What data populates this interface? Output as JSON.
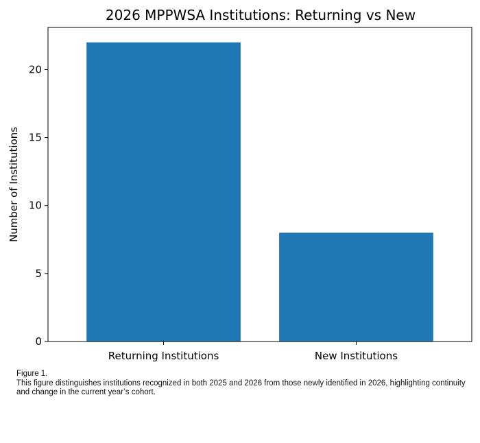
{
  "chart_data": {
    "type": "bar",
    "title": "2026 MPPWSA Institutions: Returning vs New",
    "xlabel": "",
    "ylabel": "Number of Institutions",
    "categories": [
      "Returning Institutions",
      "New Institutions"
    ],
    "values": [
      22,
      8
    ],
    "ylim": [
      0,
      23.1
    ],
    "yticks": [
      0,
      5,
      10,
      15,
      20
    ],
    "bar_color": "#1f77b4",
    "grid": false,
    "legend": "none"
  },
  "caption": {
    "label": "Figure 1.",
    "text": "This figure distinguishes institutions recognized in both 2025 and 2026 from those newly identified in 2026, highlighting continuity and change in the current year’s cohort."
  }
}
